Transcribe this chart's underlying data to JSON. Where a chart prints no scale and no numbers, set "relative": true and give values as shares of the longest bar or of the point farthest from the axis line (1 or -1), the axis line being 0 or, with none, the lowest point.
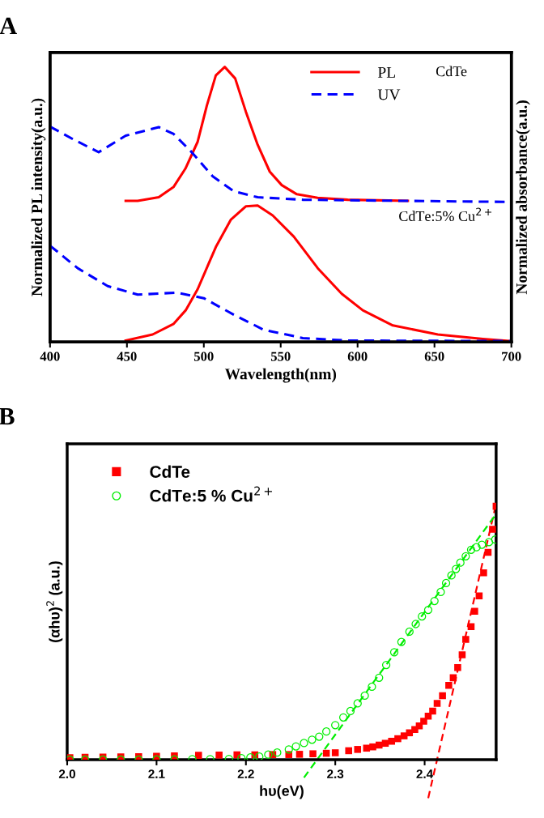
{
  "chart_data": [
    {
      "type": "line",
      "title": "A",
      "xlabel": "Wavelength(nm)",
      "ylabel": "Normalized PL intensity(a.u.)",
      "y2label": "Normalized absorbance(a.u.)",
      "relative": true,
      "xlim": [
        400,
        700
      ],
      "xticks": [
        400,
        450,
        500,
        550,
        600,
        650,
        700
      ],
      "tick_labels": "x",
      "legend": "top right",
      "grid": false,
      "annotations": [
        "CdTe",
        "CdTe:5% Cu$^{2+}$"
      ],
      "series": [
        {
          "name": "PL",
          "color": "#ff0000",
          "line_style": "solid",
          "x": [
            449.2,
            457,
            470.7,
            480.4,
            488,
            496,
            502,
            507.8,
            513.6,
            520.4,
            527.3,
            535,
            542.9,
            550.7,
            560.5,
            574,
            593.6,
            632.7
          ],
          "values": [
            0.513,
            0.513,
            0.526,
            0.564,
            0.63,
            0.728,
            0.86,
            0.969,
            1.0,
            0.958,
            0.838,
            0.717,
            0.619,
            0.57,
            0.537,
            0.524,
            0.517,
            0.513
          ]
        },
        {
          "name": "UV",
          "color": "#0000ff",
          "line_style": "dashed",
          "axis": "y2",
          "x": [
            400,
            416,
            431.6,
            449.2,
            470.7,
            480.4,
            492.1,
            505.8,
            519.5,
            535,
            564.4,
            613.2,
            700
          ],
          "values": [
            0.783,
            0.734,
            0.69,
            0.75,
            0.781,
            0.756,
            0.69,
            0.602,
            0.548,
            0.526,
            0.517,
            0.514,
            0.509
          ]
        },
        {
          "color": "#ff0000",
          "line_style": "solid",
          "x": [
            449.2,
            466.7,
            480.4,
            488.2,
            496,
            507.8,
            517.5,
            527.3,
            535,
            544.8,
            558.5,
            574.1,
            589.7,
            603.4,
            622.9,
            652.2,
            681.5,
            700
          ],
          "values": [
            0.005,
            0.027,
            0.066,
            0.115,
            0.192,
            0.345,
            0.444,
            0.493,
            0.496,
            0.46,
            0.383,
            0.268,
            0.175,
            0.115,
            0.06,
            0.027,
            0.011,
            0.003
          ]
        },
        {
          "color": "#0000ff",
          "line_style": "dashed",
          "axis": "y2",
          "x": [
            400,
            418,
            437.5,
            457,
            482.4,
            500,
            519.5,
            539,
            564.4,
            593.6,
            700
          ],
          "values": [
            0.35,
            0.268,
            0.203,
            0.172,
            0.179,
            0.159,
            0.099,
            0.044,
            0.014,
            0.005,
            0.003
          ]
        }
      ]
    },
    {
      "type": "scatter",
      "title": "B",
      "xlabel": "hυ(eV)",
      "ylabel": "(αhυ)$^{2}$ (a.u.)",
      "relative": true,
      "xlim": [
        2.0,
        2.48
      ],
      "xticks": [
        {
          "value": 2.0,
          "label": "2.0"
        },
        2.1,
        2.2,
        2.3,
        2.4
      ],
      "tick_labels": "x",
      "legend": "top left",
      "grid": false,
      "series": [
        {
          "name": "CdTe",
          "color": "#ff0000",
          "marker": "square",
          "x": [
            2.003,
            2.02,
            2.04,
            2.06,
            2.08,
            2.1,
            2.12,
            2.147,
            2.17,
            2.19,
            2.21,
            2.23,
            2.248,
            2.26,
            2.275,
            2.29,
            2.3,
            2.315,
            2.325,
            2.335,
            2.342,
            2.349,
            2.356,
            2.363,
            2.37,
            2.377,
            2.383,
            2.389,
            2.394,
            2.399,
            2.404,
            2.409,
            2.414,
            2.42,
            2.427,
            2.432,
            2.437,
            2.442,
            2.446,
            2.452,
            2.456,
            2.461,
            2.466,
            2.471,
            2.476,
            2.48
          ],
          "values": [
            0.008,
            0.009,
            0.01,
            0.011,
            0.012,
            0.013,
            0.015,
            0.017,
            0.018,
            0.019,
            0.019,
            0.02,
            0.02,
            0.021,
            0.023,
            0.025,
            0.027,
            0.035,
            0.04,
            0.045,
            0.05,
            0.057,
            0.064,
            0.072,
            0.082,
            0.093,
            0.105,
            0.118,
            0.132,
            0.15,
            0.17,
            0.19,
            0.22,
            0.25,
            0.29,
            0.32,
            0.36,
            0.41,
            0.47,
            0.52,
            0.58,
            0.64,
            0.73,
            0.81,
            0.9,
            0.99
          ]
        },
        {
          "name": "CdTe:5 % Cu$^{2+}$",
          "color": "#00ee00",
          "marker": "circle",
          "x": [
            2.003,
            2.02,
            2.04,
            2.06,
            2.08,
            2.1,
            2.12,
            2.14,
            2.16,
            2.181,
            2.195,
            2.205,
            2.215,
            2.225,
            2.235,
            2.248,
            2.256,
            2.265,
            2.274,
            2.282,
            2.29,
            2.3,
            2.309,
            2.317,
            2.325,
            2.333,
            2.341,
            2.349,
            2.357,
            2.366,
            2.374,
            2.383,
            2.39,
            2.397,
            2.404,
            2.411,
            2.418,
            2.424,
            2.43,
            2.435,
            2.44,
            2.446,
            2.452,
            2.458,
            2.464,
            2.472,
            2.479
          ],
          "values": [
            0.0,
            0.0,
            0.0,
            0.0,
            0.0,
            0.001,
            0.001,
            0.002,
            0.002,
            0.003,
            0.006,
            0.009,
            0.012,
            0.02,
            0.028,
            0.04,
            0.052,
            0.065,
            0.078,
            0.09,
            0.11,
            0.135,
            0.165,
            0.19,
            0.22,
            0.25,
            0.285,
            0.32,
            0.37,
            0.42,
            0.46,
            0.5,
            0.53,
            0.56,
            0.585,
            0.62,
            0.655,
            0.69,
            0.72,
            0.745,
            0.77,
            0.795,
            0.82,
            0.83,
            0.84,
            0.85,
            0.86
          ]
        },
        {
          "type": "line",
          "color": "#ff0000",
          "line_style": "dashed",
          "x": [
            2.404,
            2.48
          ],
          "values": [
            -0.15,
            1.0
          ]
        },
        {
          "type": "line",
          "color": "#00ee00",
          "line_style": "dashed",
          "x": [
            2.265,
            2.48
          ],
          "values": [
            -0.07,
            0.96
          ]
        }
      ]
    }
  ]
}
